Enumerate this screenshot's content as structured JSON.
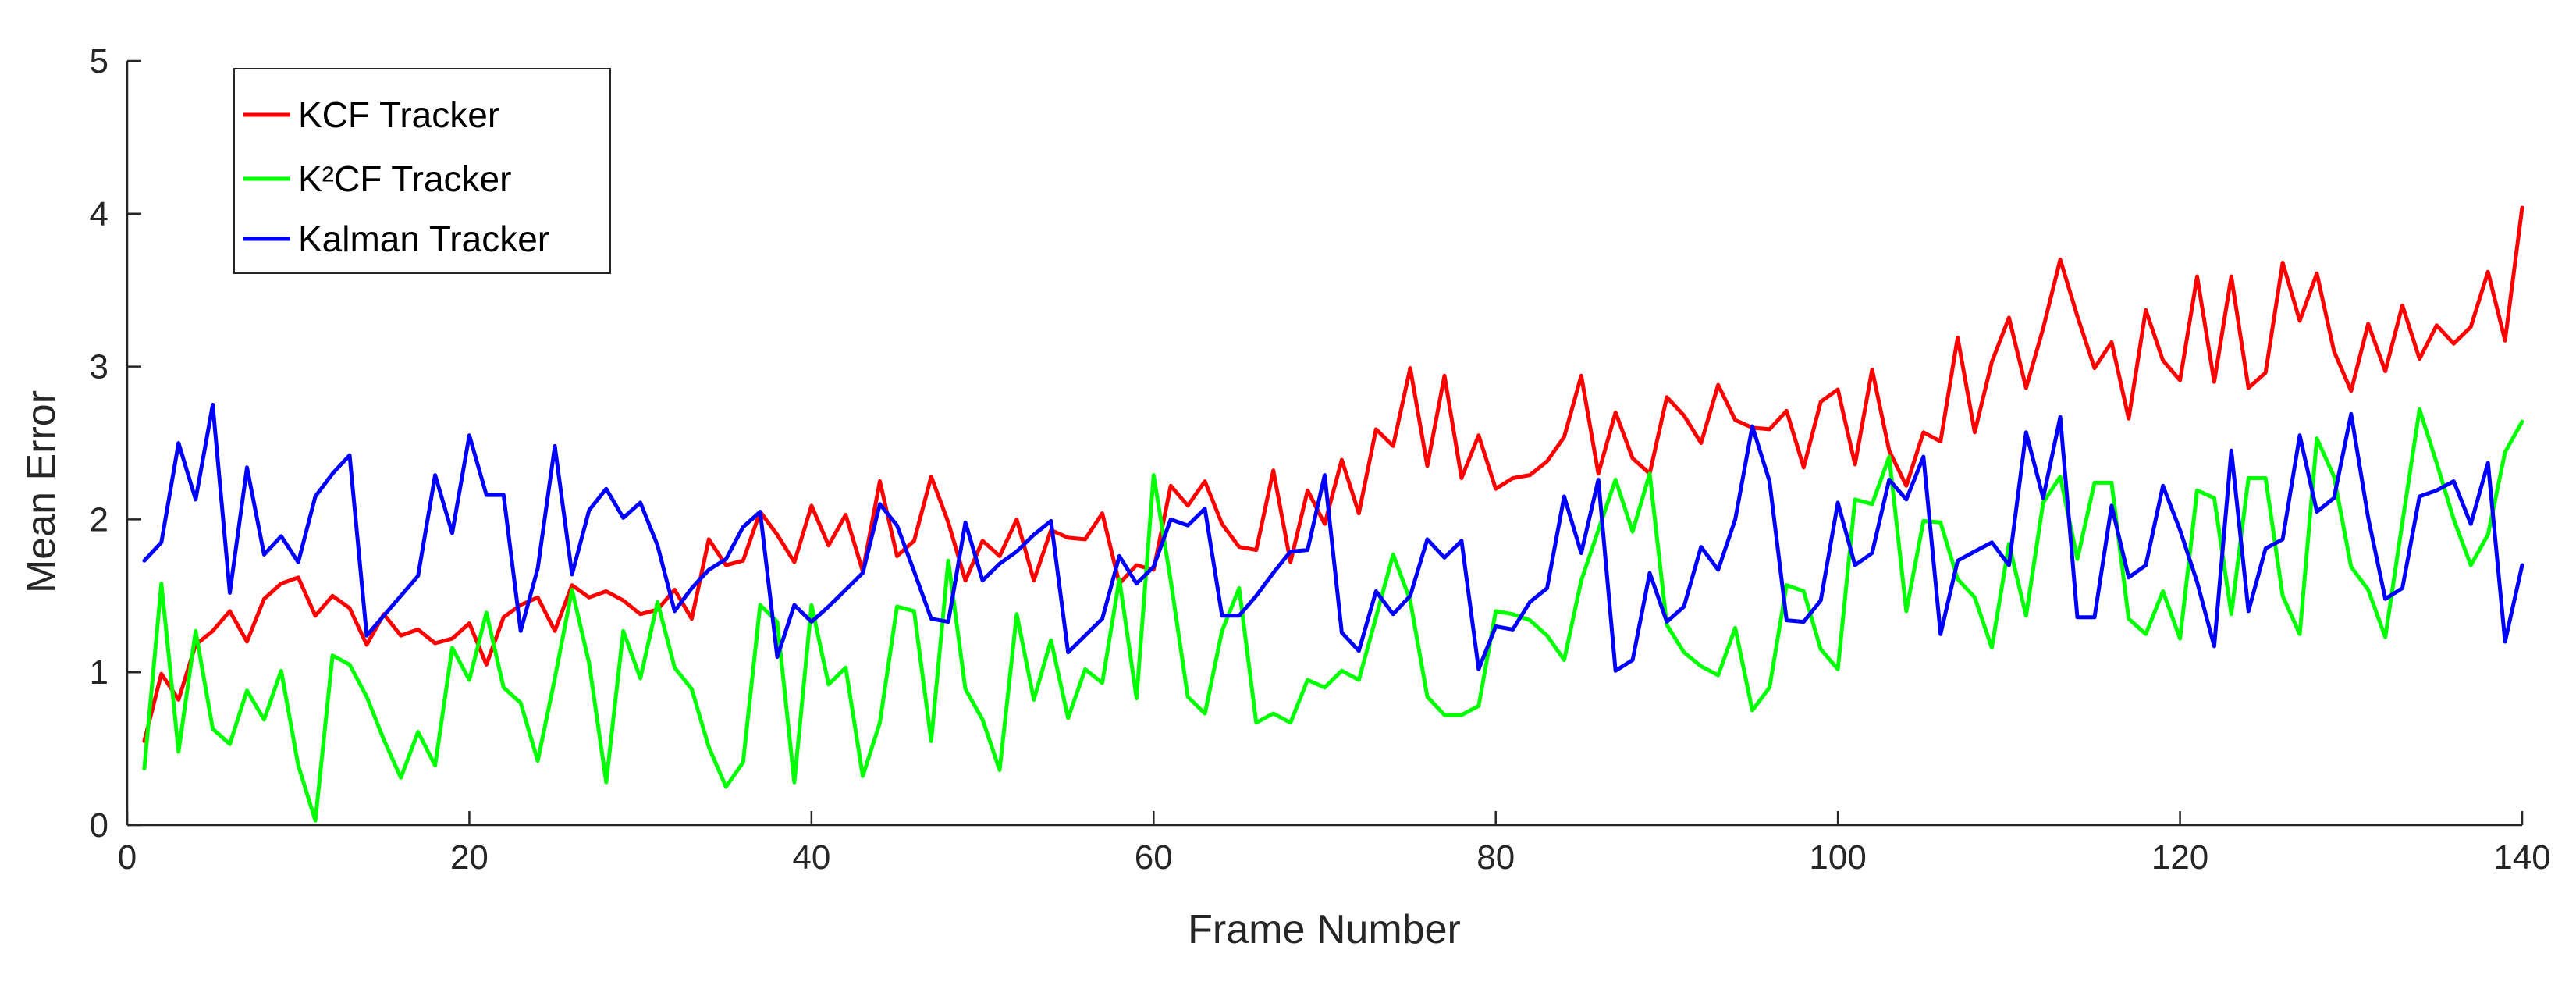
{
  "chart_data": {
    "type": "line",
    "title": "",
    "xlabel": "Frame Number",
    "ylabel": "Mean Error",
    "xlim": [
      0,
      140
    ],
    "ylim": [
      0,
      5
    ],
    "xticks": [
      "0",
      "20",
      "40",
      "60",
      "80",
      "100",
      "120",
      "140"
    ],
    "yticks": [
      "0",
      "1",
      "2",
      "3",
      "4",
      "5"
    ],
    "grid": false,
    "legend_position": "top-left",
    "x": [
      1,
      2,
      3,
      4,
      5,
      6,
      7,
      8,
      9,
      10,
      11,
      12,
      13,
      14,
      15,
      16,
      17,
      18,
      19,
      20,
      21,
      22,
      23,
      24,
      25,
      26,
      27,
      28,
      29,
      30,
      31,
      32,
      33,
      34,
      35,
      36,
      37,
      38,
      39,
      40,
      41,
      42,
      43,
      44,
      45,
      46,
      47,
      48,
      49,
      50,
      51,
      52,
      53,
      54,
      55,
      56,
      57,
      58,
      59,
      60,
      61,
      62,
      63,
      64,
      65,
      66,
      67,
      68,
      69,
      70,
      71,
      72,
      73,
      74,
      75,
      76,
      77,
      78,
      79,
      80,
      81,
      82,
      83,
      84,
      85,
      86,
      87,
      88,
      89,
      90,
      91,
      92,
      93,
      94,
      95,
      96,
      97,
      98,
      99,
      100,
      101,
      102,
      103,
      104,
      105,
      106,
      107,
      108,
      109,
      110,
      111,
      112,
      113,
      114,
      115,
      116,
      117,
      118,
      119,
      120,
      121,
      122,
      123,
      124,
      125,
      126,
      127,
      128,
      129,
      130,
      131,
      132,
      133,
      134,
      135,
      136,
      137,
      138,
      139,
      140
    ],
    "series": [
      {
        "name": "KCF Tracker",
        "color": "#ff0000",
        "values": [
          0.55,
          0.99,
          0.82,
          1.18,
          1.27,
          1.4,
          1.2,
          1.48,
          1.58,
          1.62,
          1.37,
          1.5,
          1.42,
          1.18,
          1.38,
          1.24,
          1.28,
          1.19,
          1.22,
          1.32,
          1.05,
          1.36,
          1.44,
          1.49,
          1.27,
          1.57,
          1.49,
          1.53,
          1.47,
          1.38,
          1.41,
          1.54,
          1.35,
          1.87,
          1.7,
          1.73,
          2.05,
          1.9,
          1.72,
          2.09,
          1.83,
          2.03,
          1.66,
          2.25,
          1.76,
          1.86,
          2.28,
          1.98,
          1.6,
          1.86,
          1.76,
          2.0,
          1.6,
          1.93,
          1.88,
          1.87,
          2.04,
          1.58,
          1.7,
          1.67,
          2.22,
          2.09,
          2.25,
          1.97,
          1.82,
          1.8,
          2.32,
          1.72,
          2.19,
          1.97,
          2.39,
          2.04,
          2.59,
          2.48,
          2.99,
          2.35,
          2.94,
          2.27,
          2.55,
          2.2,
          2.27,
          2.29,
          2.38,
          2.54,
          2.94,
          2.3,
          2.7,
          2.4,
          2.3,
          2.8,
          2.68,
          2.5,
          2.88,
          2.65,
          2.6,
          2.59,
          2.71,
          2.34,
          2.77,
          2.85,
          2.36,
          2.98,
          2.45,
          2.22,
          2.57,
          2.51,
          3.19,
          2.57,
          3.03,
          3.32,
          2.86,
          3.25,
          3.7,
          3.33,
          2.99,
          3.16,
          2.66,
          3.37,
          3.04,
          2.91,
          3.59,
          2.9,
          3.59,
          2.86,
          2.96,
          3.68,
          3.3,
          3.61,
          3.1,
          2.84,
          3.28,
          2.97,
          3.4,
          3.05,
          3.27,
          3.15,
          3.26,
          3.62,
          3.17,
          4.04
        ]
      },
      {
        "name": "K²CF Tracker",
        "color": "#00ff00",
        "values": [
          0.37,
          1.58,
          0.48,
          1.27,
          0.63,
          0.53,
          0.88,
          0.69,
          1.01,
          0.39,
          0.03,
          1.11,
          1.05,
          0.84,
          0.56,
          0.31,
          0.61,
          0.39,
          1.16,
          0.95,
          1.39,
          0.9,
          0.8,
          0.42,
          0.96,
          1.54,
          1.06,
          0.28,
          1.27,
          0.96,
          1.46,
          1.03,
          0.89,
          0.51,
          0.25,
          0.41,
          1.44,
          1.33,
          0.28,
          1.44,
          0.92,
          1.03,
          0.32,
          0.67,
          1.43,
          1.4,
          0.55,
          1.73,
          0.89,
          0.69,
          0.36,
          1.38,
          0.82,
          1.21,
          0.7,
          1.02,
          0.93,
          1.61,
          0.83,
          2.29,
          1.6,
          0.84,
          0.73,
          1.27,
          1.55,
          0.67,
          0.73,
          0.67,
          0.95,
          0.9,
          1.01,
          0.95,
          1.36,
          1.77,
          1.47,
          0.84,
          0.72,
          0.72,
          0.78,
          1.4,
          1.38,
          1.34,
          1.24,
          1.08,
          1.6,
          1.93,
          2.26,
          1.92,
          2.3,
          1.31,
          1.13,
          1.04,
          0.98,
          1.29,
          0.75,
          0.9,
          1.57,
          1.53,
          1.15,
          1.02,
          2.13,
          2.1,
          2.41,
          1.4,
          1.99,
          1.98,
          1.61,
          1.49,
          1.16,
          1.84,
          1.37,
          2.11,
          2.28,
          1.74,
          2.24,
          2.24,
          1.35,
          1.25,
          1.53,
          1.22,
          2.19,
          2.14,
          1.38,
          2.27,
          2.27,
          1.5,
          1.25,
          2.53,
          2.28,
          1.69,
          1.54,
          1.23,
          1.98,
          2.72,
          2.37,
          2.0,
          1.7,
          1.9,
          2.44,
          2.64
        ]
      },
      {
        "name": "Kalman Tracker",
        "color": "#0000ff",
        "values": [
          1.73,
          1.85,
          2.5,
          2.13,
          2.75,
          1.52,
          2.34,
          1.77,
          1.89,
          1.72,
          2.15,
          2.3,
          2.42,
          1.24,
          1.37,
          1.5,
          1.63,
          2.29,
          1.91,
          2.55,
          2.16,
          2.16,
          1.27,
          1.68,
          2.48,
          1.64,
          2.06,
          2.2,
          2.01,
          2.11,
          1.83,
          1.4,
          1.55,
          1.67,
          1.74,
          1.95,
          2.05,
          1.1,
          1.44,
          1.33,
          1.43,
          1.54,
          1.65,
          2.1,
          1.96,
          1.66,
          1.35,
          1.33,
          1.98,
          1.6,
          1.71,
          1.79,
          1.9,
          1.99,
          1.13,
          1.24,
          1.35,
          1.76,
          1.58,
          1.69,
          2.0,
          1.96,
          2.07,
          1.37,
          1.37,
          1.5,
          1.65,
          1.79,
          1.8,
          2.29,
          1.26,
          1.14,
          1.53,
          1.38,
          1.5,
          1.87,
          1.75,
          1.86,
          1.02,
          1.3,
          1.28,
          1.46,
          1.55,
          2.15,
          1.78,
          2.26,
          1.01,
          1.08,
          1.65,
          1.33,
          1.43,
          1.82,
          1.67,
          2.0,
          2.61,
          2.25,
          1.34,
          1.33,
          1.47,
          2.11,
          1.7,
          1.78,
          2.26,
          2.13,
          2.41,
          1.25,
          1.73,
          1.79,
          1.85,
          1.7,
          2.57,
          2.14,
          2.67,
          1.36,
          1.36,
          2.09,
          1.62,
          1.7,
          2.22,
          1.93,
          1.59,
          1.17,
          2.45,
          1.4,
          1.81,
          1.87,
          2.55,
          2.05,
          2.14,
          2.69,
          2.01,
          1.48,
          1.55,
          2.15,
          2.19,
          2.25,
          1.97,
          2.37,
          1.2,
          1.7
        ]
      }
    ]
  }
}
